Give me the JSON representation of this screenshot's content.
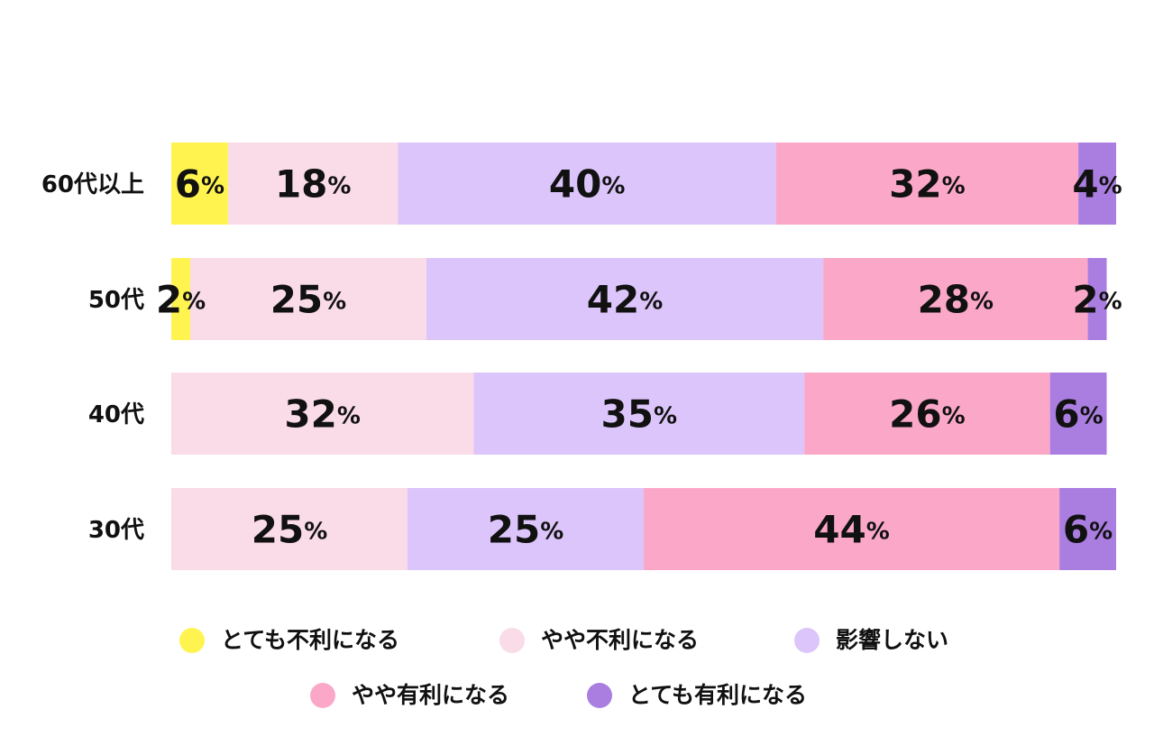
{
  "chart_data": {
    "type": "stacked-bar-horizontal",
    "categories": [
      "60代以上",
      "50代",
      "40代",
      "30代"
    ],
    "xlim": [
      0,
      100
    ],
    "series": [
      {
        "name": "とても不利になる",
        "color": "#fff44f",
        "values": [
          6,
          2,
          null,
          null
        ],
        "value_labels": [
          "6%",
          "2%",
          null,
          null
        ]
      },
      {
        "name": "やや不利になる",
        "color": "#fadbe8",
        "values": [
          18,
          25,
          32,
          25
        ],
        "value_labels": [
          "18%",
          "25%",
          "32%",
          "25%"
        ]
      },
      {
        "name": "影響しない",
        "color": "#dcc5fa",
        "values": [
          40,
          42,
          35,
          25
        ],
        "value_labels": [
          "40%",
          "42%",
          "35%",
          "25%"
        ]
      },
      {
        "name": "やや有利になる",
        "color": "#fba8c8",
        "values": [
          32,
          28,
          26,
          44
        ],
        "value_labels": [
          "32%",
          "28%",
          "26%",
          "44%"
        ]
      },
      {
        "name": "とても有利になる",
        "color": "#a97ee0",
        "values": [
          4,
          2,
          6,
          6
        ],
        "value_labels": [
          "4%",
          "2%",
          "6%",
          "6%"
        ]
      }
    ]
  }
}
